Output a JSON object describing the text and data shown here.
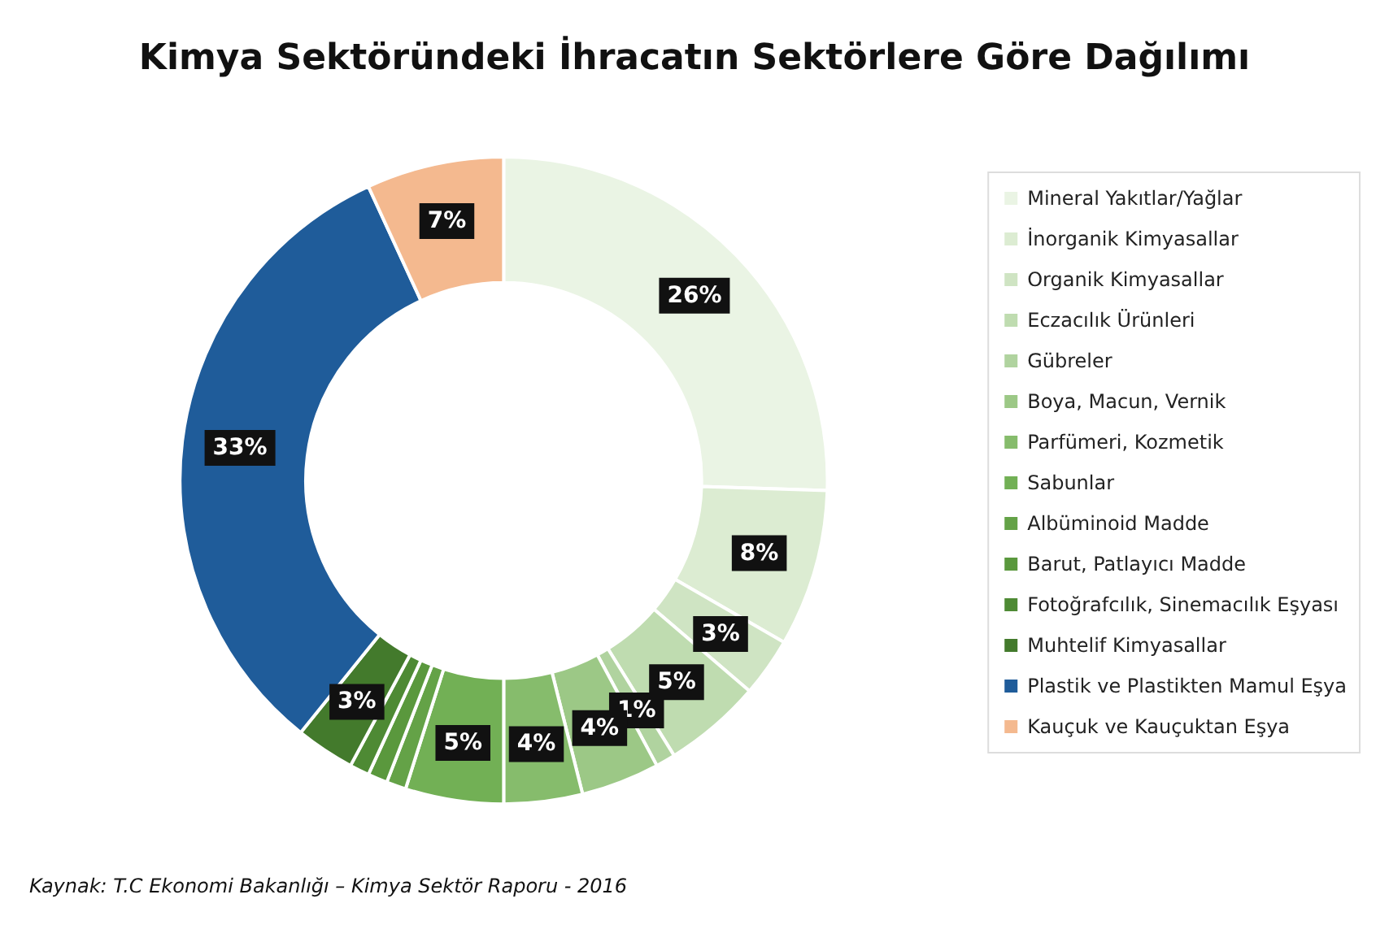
{
  "chart_data": {
    "type": "donut",
    "title": "Kimya Sektöründeki İhracatın Sektörlere Göre Dağılımı",
    "categories": [
      "Mineral Yakıtlar/Yağlar",
      "İnorganik Kimyasallar",
      "Organik Kimyasallar",
      "Eczacılık Ürünleri",
      "Gübreler",
      "Boya, Macun, Vernik",
      "Parfümeri, Kozmetik",
      "Sabunlar",
      "Albüminoid Madde",
      "Barut, Patlayıcı Madde",
      "Fotoğrafcılık, Sinemacılık Eşyası",
      "Muhtelif Kimyasallar",
      "Plastik ve Plastikten Mamul Eşya",
      "Kauçuk ve Kauçuktan Eşya"
    ],
    "values": [
      26,
      8,
      3,
      5,
      1,
      4,
      4,
      5,
      1,
      1,
      1,
      3,
      33,
      7
    ],
    "value_labels": [
      "26%",
      "8%",
      "3%",
      "5%",
      "1%",
      "4%",
      "4%",
      "5%",
      null,
      null,
      null,
      "3%",
      "33%",
      "7%"
    ],
    "colors": [
      "#eaf4e4",
      "#dcecd2",
      "#cfe4c3",
      "#bfdcb0",
      "#b0d39f",
      "#9cc886",
      "#86bc6c",
      "#72b055",
      "#64a247",
      "#5a983d",
      "#4e8a34",
      "#437a2c",
      "#1f5c9a",
      "#f4b98f"
    ],
    "legend": "right",
    "annotations": [
      "Kaynak: T.C Ekonomi Bakanlığı – Kimya Sektör Raporu - 2016"
    ]
  }
}
